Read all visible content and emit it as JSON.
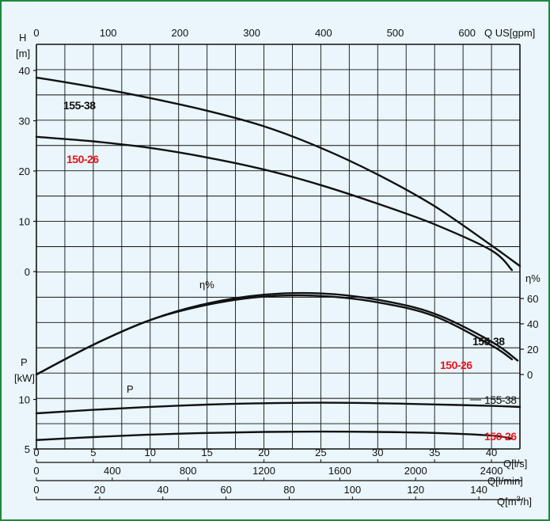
{
  "chart_data": {
    "type": "line",
    "axes": {
      "flow_ls": {
        "label": "Q[l/s]",
        "range": [
          0,
          42.5
        ],
        "ticks": [
          0,
          5,
          10,
          15,
          20,
          25,
          30,
          35,
          40
        ]
      },
      "flow_lmin": {
        "label": "Q[l/min]",
        "ticks": [
          0,
          400,
          800,
          1200,
          1600,
          2000,
          2400
        ]
      },
      "flow_m3h": {
        "label": "Q[m³/h]",
        "ticks": [
          0,
          20,
          40,
          60,
          80,
          100,
          120,
          140
        ]
      },
      "flow_gpm": {
        "label": "Q US[gpm]",
        "ticks": [
          0,
          100,
          200,
          300,
          400,
          500,
          600
        ]
      },
      "head": {
        "label": "H",
        "unit": "[m]",
        "range": [
          0,
          40
        ],
        "ticks": [
          0,
          10,
          20,
          30,
          40
        ]
      },
      "efficiency": {
        "label": "η%",
        "range": [
          0,
          80
        ],
        "ticks": [
          0,
          20,
          40,
          60
        ]
      },
      "power": {
        "label": "P",
        "unit": "[kW]",
        "range": [
          5,
          12.5
        ],
        "ticks": [
          5,
          10
        ]
      }
    },
    "grid": true,
    "panels": [
      {
        "name": "head",
        "series": [
          {
            "name": "155-38",
            "color": "#111111",
            "x": [
              0,
              5,
              10,
              15,
              20,
              25,
              30,
              35,
              40,
              42.5
            ],
            "y": [
              38.6,
              36.7,
              34.5,
              32,
              28.9,
              24.6,
              19.3,
              13,
              5.2,
              1.1
            ]
          },
          {
            "name": "150-26",
            "color": "#e8141c",
            "x": [
              0,
              5,
              10,
              15,
              20,
              25,
              30,
              35,
              40,
              41.8
            ],
            "y": [
              26.8,
              25.9,
              24.6,
              22.7,
              20.3,
              17.2,
              13.5,
              9.4,
              4.2,
              0.3
            ]
          }
        ]
      },
      {
        "name": "efficiency",
        "series": [
          {
            "name": "155-38",
            "color": "#111111",
            "x": [
              0,
              5,
              10,
              15,
              20,
              25,
              30,
              35,
              40,
              42.3
            ],
            "y": [
              0,
              23.5,
              43,
              56,
              63,
              64,
              59,
              48,
              26,
              11
            ]
          },
          {
            "name": "150-26",
            "color": "#e8141c",
            "x": [
              0,
              5,
              10,
              15,
              20,
              25,
              30,
              35,
              40,
              41.8
            ],
            "y": [
              0,
              23.5,
              43,
              55,
              61.5,
              62,
              57,
              46,
              23,
              12
            ]
          }
        ]
      },
      {
        "name": "power",
        "series": [
          {
            "name": "155-38",
            "color": "#111111",
            "x": [
              0,
              5,
              10,
              15,
              20,
              25,
              30,
              35,
              40,
              42.5
            ],
            "y": [
              8.6,
              8.95,
              9.25,
              9.48,
              9.62,
              9.67,
              9.62,
              9.5,
              9.35,
              9.25
            ]
          },
          {
            "name": "150-26",
            "color": "#e8141c",
            "x": [
              0,
              5,
              10,
              15,
              20,
              25,
              30,
              35,
              40,
              41.8
            ],
            "y": [
              5.9,
              6.2,
              6.45,
              6.62,
              6.72,
              6.75,
              6.72,
              6.62,
              6.35,
              6.05
            ]
          }
        ]
      }
    ],
    "labels": {
      "eta_marker": "η%",
      "p_marker": "P"
    }
  }
}
